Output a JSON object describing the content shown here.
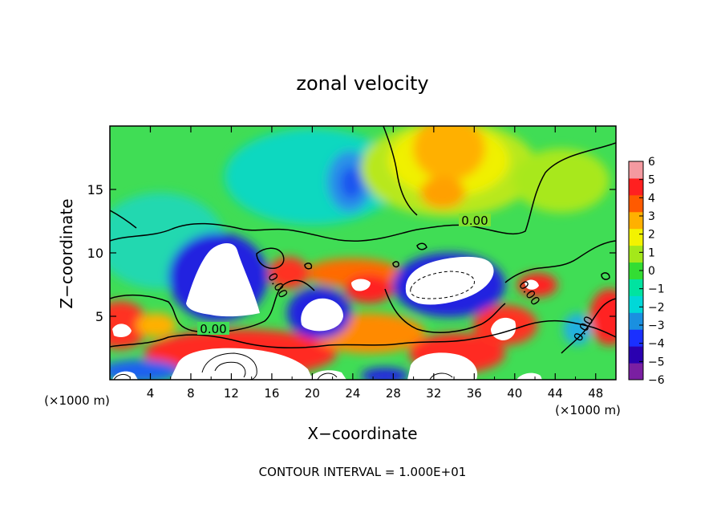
{
  "chart_data": {
    "type": "heatmap",
    "title": "zonal velocity",
    "xlabel": "X−coordinate",
    "ylabel": "Z−coordinate",
    "x_unit_left": "(×1000 m)",
    "x_unit_right": "(×1000 m)",
    "footer": "CONTOUR INTERVAL = 1.000E+01",
    "xlim": [
      0,
      50
    ],
    "ylim": [
      0,
      20
    ],
    "x_ticks": [
      4,
      8,
      12,
      16,
      20,
      24,
      28,
      32,
      36,
      40,
      44,
      48
    ],
    "y_ticks": [
      5,
      10,
      15
    ],
    "contour_labels": [
      "0.00",
      "0.00",
      "0.00",
      "0.00",
      "0.00"
    ],
    "colorbar": {
      "range": [
        -6,
        6
      ],
      "ticks": [
        6,
        5,
        4,
        3,
        2,
        1,
        0,
        -1,
        -2,
        -3,
        -4,
        -5,
        -6
      ],
      "tick_labels": [
        "6",
        "5",
        "4",
        "3",
        "2",
        "1",
        "0",
        "−1",
        "−2",
        "−3",
        "−4",
        "−5",
        "−6"
      ],
      "colors": [
        "#7a1fa2",
        "#2a00b0",
        "#1a30ff",
        "#1a90e0",
        "#00d8d8",
        "#00e3a0",
        "#33dd33",
        "#a4e81a",
        "#f3f300",
        "#ffb000",
        "#ff5a00",
        "#ff2020",
        "#f49aa0"
      ]
    },
    "grid": false
  }
}
